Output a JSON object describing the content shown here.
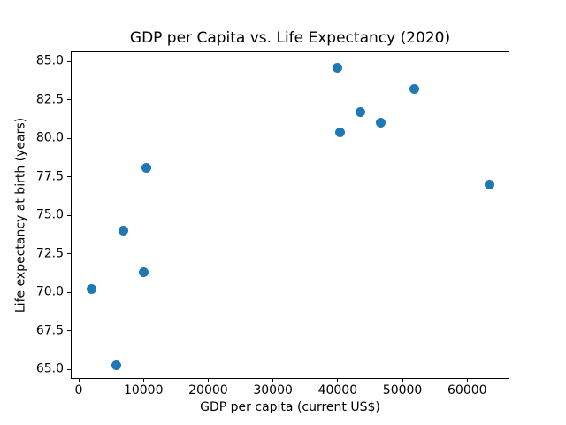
{
  "chart_data": {
    "type": "scatter",
    "title": "GDP per Capita vs. Life Expectancy (2020)",
    "xlabel": "GDP per capita (current US$)",
    "ylabel": "Life expectancy at birth (years)",
    "points": [
      {
        "x": 2000,
        "y": 70.2
      },
      {
        "x": 5800,
        "y": 65.3
      },
      {
        "x": 6900,
        "y": 74.0
      },
      {
        "x": 10100,
        "y": 71.3
      },
      {
        "x": 10400,
        "y": 78.1
      },
      {
        "x": 40000,
        "y": 84.6
      },
      {
        "x": 40300,
        "y": 80.4
      },
      {
        "x": 43500,
        "y": 81.7
      },
      {
        "x": 46700,
        "y": 81.0
      },
      {
        "x": 51800,
        "y": 83.2
      },
      {
        "x": 63400,
        "y": 77.0
      }
    ],
    "xlim": [
      -1230,
      66515
    ],
    "ylim": [
      64.43,
      85.66
    ],
    "xticks": {
      "values": [
        0,
        10000,
        20000,
        30000,
        40000,
        50000,
        60000
      ],
      "labels": [
        "0",
        "10000",
        "20000",
        "30000",
        "40000",
        "50000",
        "60000"
      ]
    },
    "yticks": {
      "values": [
        65.0,
        67.5,
        70.0,
        72.5,
        75.0,
        77.5,
        80.0,
        82.5,
        85.0
      ],
      "labels": [
        "65.0",
        "67.5",
        "70.0",
        "72.5",
        "75.0",
        "77.5",
        "80.0",
        "82.5",
        "85.0"
      ]
    },
    "grid": false,
    "legend": "none",
    "marker_color": "#1f77b4",
    "marker_diameter_px": 11
  }
}
